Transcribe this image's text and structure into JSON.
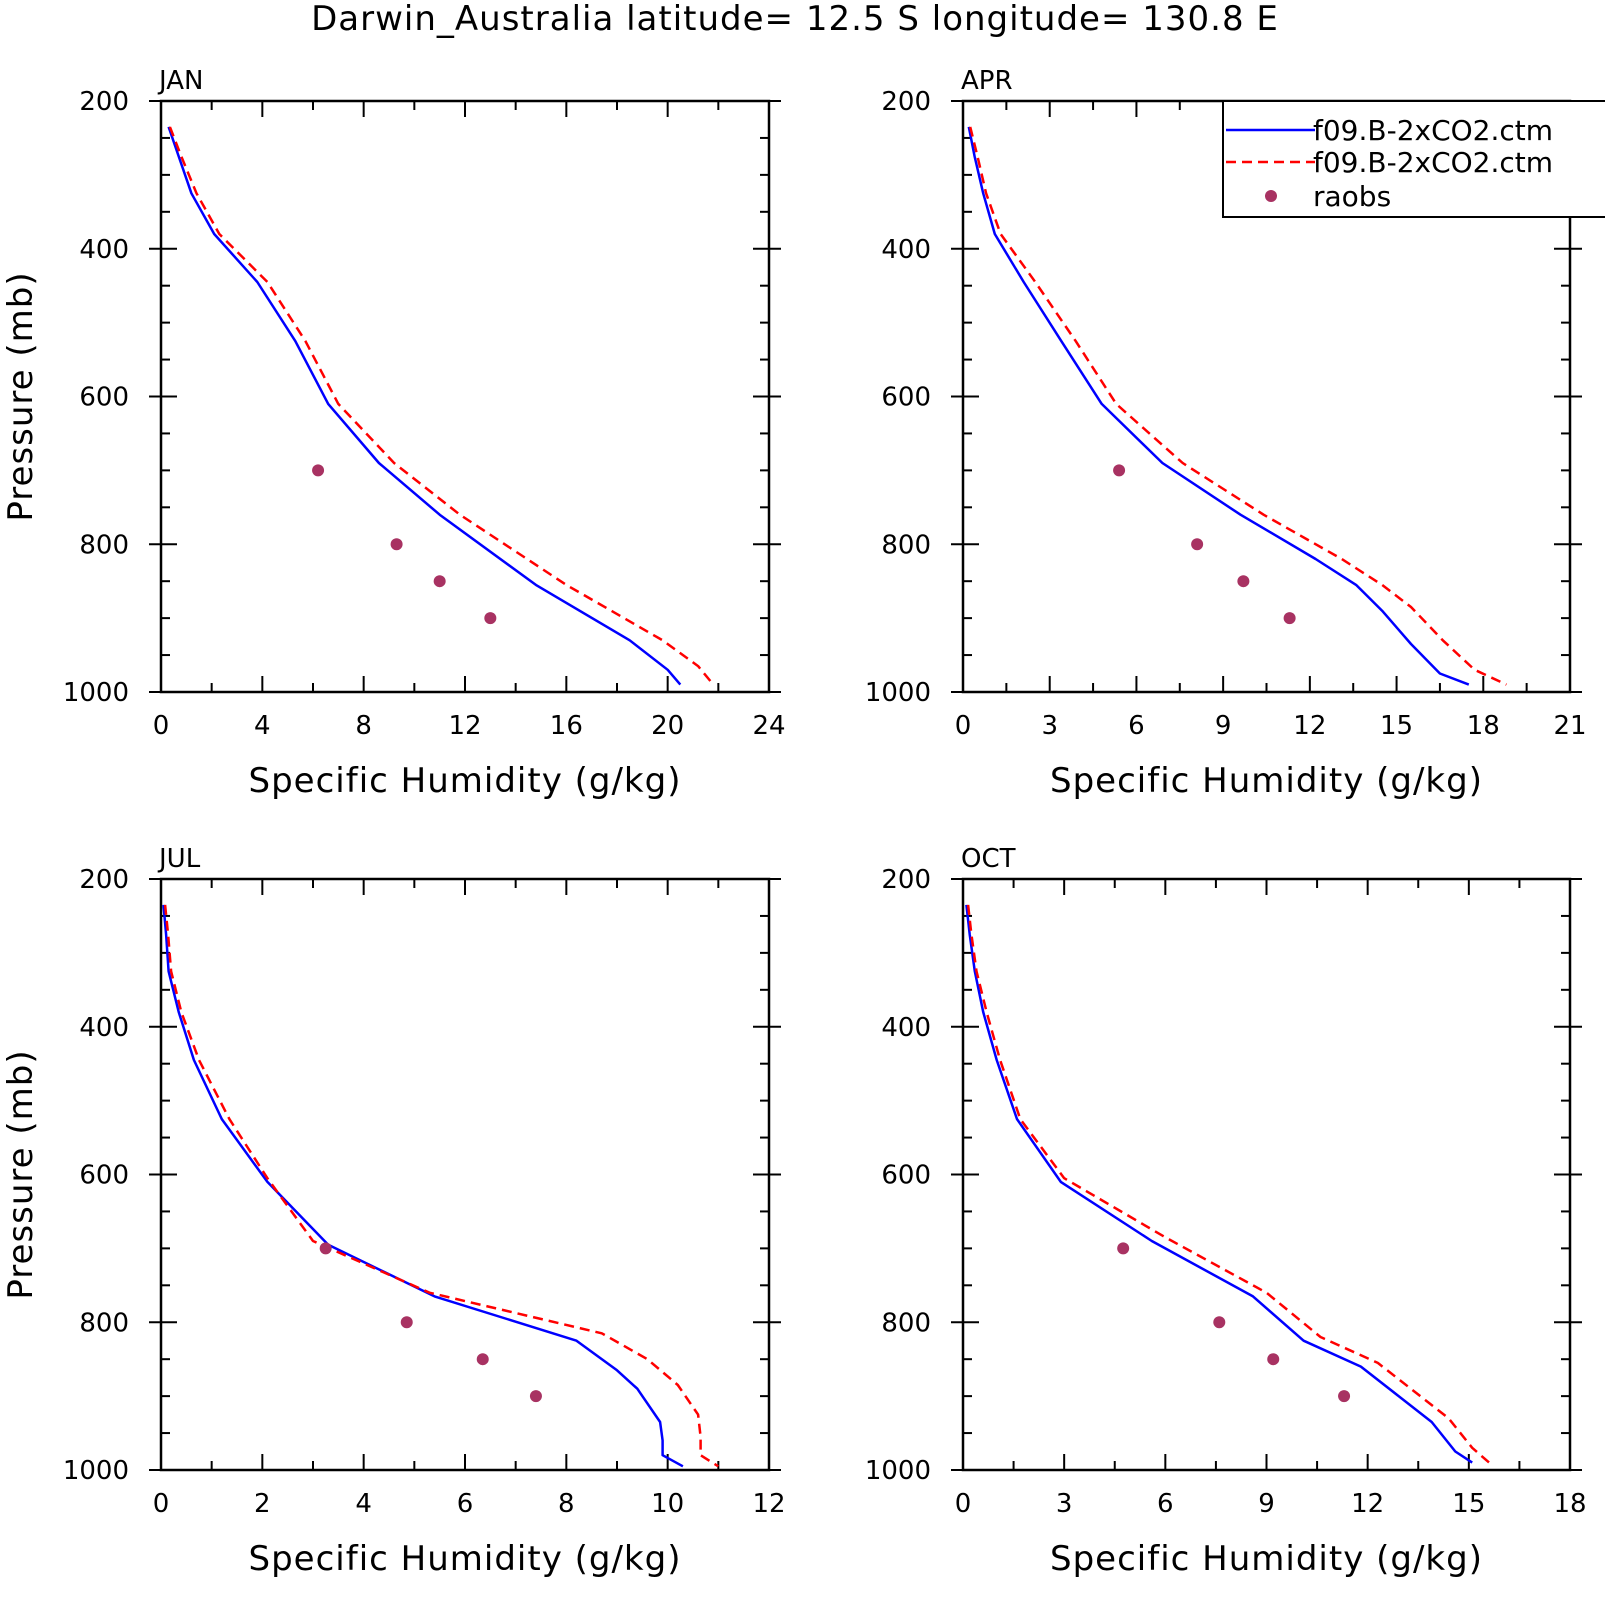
{
  "page_title": "Darwin_Australia  latitude= 12.5 S longitude= 130.8 E",
  "colors": {
    "model_solid": "#0000ff",
    "model_dashed": "#ff0000",
    "raobs": "#a83262",
    "frame": "#000000"
  },
  "legend": {
    "entries": [
      {
        "label": "f09.B-2xCO2.ctm",
        "style": "solid"
      },
      {
        "label": "f09.B-2xCO2.ctm",
        "style": "dashed"
      },
      {
        "label": "raobs",
        "style": "marker"
      }
    ]
  },
  "chart_data": [
    {
      "type": "line",
      "title": "JAN",
      "xlabel": "Specific Humidity (g/kg)",
      "ylabel": "Pressure (mb)",
      "xlim": [
        0,
        24
      ],
      "ylim": [
        200,
        1000
      ],
      "y_inverted": true,
      "xticks": [
        0,
        4,
        8,
        12,
        16,
        20,
        24
      ],
      "yticks": [
        200,
        400,
        600,
        800,
        1000
      ],
      "series": [
        {
          "style": "solid",
          "x": [
            0.3,
            0.7,
            1.2,
            2.1,
            3.8,
            5.3,
            6.6,
            8.6,
            11.0,
            14.8,
            18.5,
            20.0,
            20.5
          ],
          "y": [
            235,
            275,
            325,
            380,
            445,
            525,
            610,
            690,
            760,
            855,
            930,
            970,
            990
          ]
        },
        {
          "style": "dashed",
          "x": [
            0.35,
            0.8,
            1.4,
            2.3,
            4.2,
            5.7,
            7.0,
            9.2,
            11.8,
            16.0,
            19.8,
            21.2,
            21.8
          ],
          "y": [
            235,
            275,
            325,
            380,
            445,
            525,
            610,
            690,
            760,
            855,
            930,
            965,
            990
          ]
        },
        {
          "style": "marker",
          "x": [
            6.2,
            9.3,
            11.0,
            13.0
          ],
          "y": [
            700,
            800,
            850,
            900
          ]
        }
      ]
    },
    {
      "type": "line",
      "title": "APR",
      "xlabel": "Specific Humidity (g/kg)",
      "ylabel": "",
      "xlim": [
        0,
        21
      ],
      "ylim": [
        200,
        1000
      ],
      "y_inverted": true,
      "xticks": [
        0,
        3,
        6,
        9,
        12,
        15,
        18,
        21
      ],
      "yticks": [
        200,
        400,
        600,
        800,
        1000
      ],
      "series": [
        {
          "style": "solid",
          "x": [
            0.2,
            0.4,
            0.7,
            1.1,
            2.1,
            3.4,
            4.8,
            6.9,
            9.6,
            12.2,
            13.6,
            14.5,
            15.5,
            16.5,
            17.5
          ],
          "y": [
            235,
            275,
            325,
            380,
            445,
            525,
            610,
            690,
            760,
            820,
            855,
            890,
            935,
            975,
            990
          ]
        },
        {
          "style": "dashed",
          "x": [
            0.25,
            0.5,
            0.8,
            1.3,
            2.5,
            3.9,
            5.3,
            7.6,
            10.4,
            13.1,
            14.5,
            15.5,
            16.6,
            17.7,
            18.8
          ],
          "y": [
            235,
            275,
            325,
            380,
            445,
            525,
            610,
            690,
            760,
            820,
            855,
            885,
            930,
            970,
            990
          ]
        },
        {
          "style": "marker",
          "x": [
            5.4,
            8.1,
            9.7,
            11.3
          ],
          "y": [
            700,
            800,
            850,
            900
          ]
        }
      ]
    },
    {
      "type": "line",
      "title": "JUL",
      "xlabel": "Specific Humidity (g/kg)",
      "ylabel": "Pressure (mb)",
      "xlim": [
        0,
        12
      ],
      "ylim": [
        200,
        1000
      ],
      "y_inverted": true,
      "xticks": [
        0,
        2,
        4,
        6,
        8,
        10,
        12
      ],
      "yticks": [
        200,
        400,
        600,
        800,
        1000
      ],
      "series": [
        {
          "style": "solid",
          "x": [
            0.05,
            0.1,
            0.15,
            0.35,
            0.65,
            1.2,
            2.1,
            3.3,
            5.4,
            8.2,
            9.0,
            9.4,
            9.85,
            9.9,
            9.9,
            10.3
          ],
          "y": [
            235,
            275,
            325,
            380,
            445,
            525,
            610,
            695,
            765,
            825,
            865,
            890,
            935,
            960,
            980,
            995
          ]
        },
        {
          "style": "dashed",
          "x": [
            0.08,
            0.14,
            0.2,
            0.4,
            0.75,
            1.35,
            2.1,
            3.0,
            5.3,
            8.7,
            9.6,
            10.2,
            10.6,
            10.65,
            10.65,
            11.0
          ],
          "y": [
            235,
            275,
            325,
            380,
            445,
            525,
            605,
            690,
            760,
            815,
            850,
            885,
            925,
            955,
            980,
            995
          ]
        },
        {
          "style": "marker",
          "x": [
            3.25,
            4.85,
            6.35,
            7.4
          ],
          "y": [
            700,
            800,
            850,
            900
          ]
        }
      ]
    },
    {
      "type": "line",
      "title": "OCT",
      "xlabel": "Specific Humidity (g/kg)",
      "ylabel": "",
      "xlim": [
        0,
        18
      ],
      "ylim": [
        200,
        1000
      ],
      "y_inverted": true,
      "xticks": [
        0,
        3,
        6,
        9,
        12,
        15,
        18
      ],
      "yticks": [
        200,
        400,
        600,
        800,
        1000
      ],
      "series": [
        {
          "style": "solid",
          "x": [
            0.1,
            0.2,
            0.35,
            0.6,
            1.0,
            1.6,
            2.9,
            5.6,
            8.6,
            10.1,
            11.8,
            13.9,
            14.6,
            15.1
          ],
          "y": [
            235,
            275,
            325,
            380,
            445,
            525,
            610,
            690,
            765,
            825,
            860,
            935,
            975,
            990
          ]
        },
        {
          "style": "dashed",
          "x": [
            0.15,
            0.25,
            0.4,
            0.7,
            1.1,
            1.7,
            3.0,
            6.0,
            9.0,
            10.6,
            12.3,
            14.4,
            15.1,
            15.6
          ],
          "y": [
            235,
            275,
            325,
            380,
            445,
            525,
            605,
            685,
            760,
            820,
            855,
            930,
            970,
            990
          ]
        },
        {
          "style": "marker",
          "x": [
            4.75,
            7.6,
            9.2,
            11.3
          ],
          "y": [
            700,
            800,
            850,
            900
          ]
        }
      ]
    }
  ]
}
